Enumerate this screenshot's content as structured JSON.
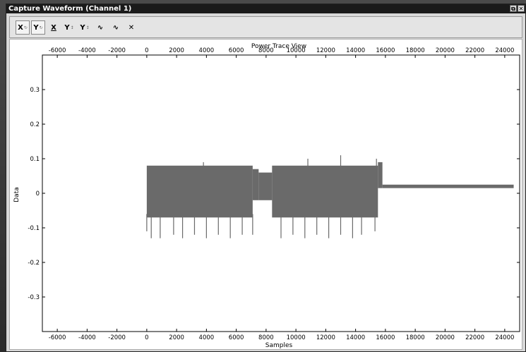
{
  "window": {
    "title": "Capture Waveform (Channel 1)",
    "restore_glyph": "⧉",
    "close_glyph": "✕"
  },
  "toolbar": {
    "tools": [
      {
        "label": "X",
        "sub": "↻",
        "icon": "x-zoom-reset-icon",
        "active": true
      },
      {
        "label": "Y",
        "sub": "↻",
        "icon": "y-zoom-reset-icon",
        "active": true
      },
      {
        "label": "X",
        "sub": "",
        "icon": "x-autoscale-icon",
        "active": false
      },
      {
        "label": "Y",
        "sub": "↕",
        "icon": "y-autoscale-icon",
        "active": false
      },
      {
        "label": "Y",
        "sub": "↕",
        "icon": "y-lock-icon",
        "active": false
      },
      {
        "label": "∿",
        "sub": "",
        "icon": "waveform-icon",
        "active": false
      },
      {
        "label": "∿",
        "sub": "",
        "icon": "waveform-alt-icon",
        "active": false
      },
      {
        "label": "✕",
        "sub": "",
        "icon": "clear-icon",
        "active": false
      }
    ]
  },
  "chart_data": {
    "type": "line",
    "title": "Power Trace View",
    "xlabel": "Samples",
    "ylabel": "Data",
    "xlim": [
      -7000,
      25000
    ],
    "ylim": [
      -0.4,
      0.4
    ],
    "xticks": [
      -6000,
      -4000,
      -2000,
      0,
      2000,
      4000,
      6000,
      8000,
      10000,
      12000,
      14000,
      16000,
      18000,
      20000,
      22000,
      24000
    ],
    "yticks": [
      -0.3,
      -0.2,
      -0.1,
      0,
      0.1,
      0.2,
      0.3
    ],
    "top_axis_ticks": true,
    "grid": false,
    "color": "#6a6a6a",
    "series": [
      {
        "segments": [
          {
            "x": [
              0,
              7100
            ],
            "y_max": 0.08,
            "y_min": -0.07
          },
          {
            "x": [
              7100,
              7500
            ],
            "y_max": 0.07,
            "y_min": -0.02
          },
          {
            "x": [
              7500,
              8400
            ],
            "y_max": 0.06,
            "y_min": -0.02
          },
          {
            "x": [
              8400,
              15500
            ],
            "y_max": 0.08,
            "y_min": -0.07
          },
          {
            "x": [
              15500,
              15800
            ],
            "y_max": 0.09,
            "y_min": 0.015
          },
          {
            "x": [
              15800,
              24600
            ],
            "y_max": 0.025,
            "y_min": 0.015
          }
        ],
        "spikes_down": [
          [
            0,
            -0.11
          ],
          [
            300,
            -0.13
          ],
          [
            900,
            -0.13
          ],
          [
            1800,
            -0.12
          ],
          [
            2400,
            -0.13
          ],
          [
            3200,
            -0.12
          ],
          [
            4000,
            -0.13
          ],
          [
            4800,
            -0.12
          ],
          [
            5600,
            -0.13
          ],
          [
            6400,
            -0.12
          ],
          [
            7100,
            -0.12
          ],
          [
            9000,
            -0.13
          ],
          [
            9800,
            -0.12
          ],
          [
            10600,
            -0.13
          ],
          [
            11400,
            -0.12
          ],
          [
            12200,
            -0.13
          ],
          [
            13000,
            -0.12
          ],
          [
            13800,
            -0.13
          ],
          [
            14400,
            -0.12
          ],
          [
            15300,
            -0.11
          ]
        ],
        "spikes_up": [
          [
            3800,
            0.09
          ],
          [
            10800,
            0.1
          ],
          [
            13000,
            0.11
          ],
          [
            15400,
            0.1
          ]
        ]
      }
    ]
  }
}
